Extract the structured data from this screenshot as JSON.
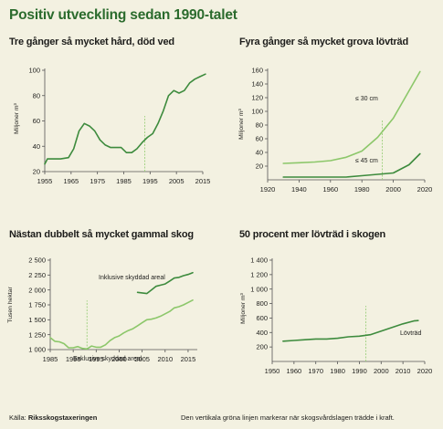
{
  "page_title": "Positiv utveckling sedan 1990-talet",
  "colors": {
    "title": "#2b6b2d",
    "dark_green": "#3d8b3d",
    "light_green": "#8cc76a",
    "vline": "#9cd07c",
    "axis": "#555555",
    "background": "#f3f1e1"
  },
  "footer": {
    "source_label": "Källa:",
    "source_name": "Riksskogstaxeringen",
    "note": "Den vertikala gröna linjen markerar när skogsvårdslagen trädde i kraft."
  },
  "chart_data": [
    {
      "type": "line",
      "title": "Tre gånger så mycket hård, död ved",
      "ylabel": "Miljoner m³",
      "xlabel": "",
      "xlim": [
        1955,
        2015
      ],
      "ylim": [
        20,
        100
      ],
      "xticks": [
        1955,
        1965,
        1975,
        1985,
        1995,
        2005,
        2015
      ],
      "yticks": [
        20,
        40,
        60,
        80,
        100
      ],
      "ytick_labels": [
        "20",
        "40",
        "60",
        "80",
        "100"
      ],
      "vline_x": 1993,
      "series": [
        {
          "name": "",
          "color": "#3d8b3d",
          "x": [
            1955,
            1956,
            1958,
            1961,
            1964,
            1966,
            1968,
            1970,
            1972,
            1974,
            1976,
            1978,
            1980,
            1982,
            1984,
            1986,
            1988,
            1990,
            1992,
            1994,
            1996,
            1998,
            2000,
            2002,
            2004,
            2006,
            2008,
            2010,
            2012,
            2014,
            2016
          ],
          "y": [
            26,
            30,
            30,
            30,
            31,
            38,
            52,
            58,
            56,
            52,
            45,
            41,
            39,
            39,
            39,
            35,
            35,
            38,
            43,
            47,
            50,
            58,
            68,
            80,
            84,
            82,
            84,
            90,
            93,
            95,
            97
          ]
        }
      ]
    },
    {
      "type": "line",
      "title": "Fyra gånger så mycket grova lövträd",
      "ylabel": "Miljoner m³",
      "xlabel": "",
      "xlim": [
        1920,
        2020
      ],
      "ylim": [
        0,
        160
      ],
      "xticks": [
        1920,
        1940,
        1960,
        1980,
        2000,
        2020
      ],
      "yticks": [
        20,
        40,
        60,
        80,
        100,
        120,
        140,
        160
      ],
      "ytick_labels": [
        "20",
        "40",
        "60",
        "80",
        "100",
        "120",
        "140",
        "160"
      ],
      "vline_x": 1993,
      "series": [
        {
          "name": "≤ 30 cm",
          "color": "#8cc76a",
          "x": [
            1930,
            1940,
            1950,
            1960,
            1970,
            1980,
            1990,
            2000,
            2010,
            2017
          ],
          "y": [
            24,
            25,
            26,
            28,
            33,
            42,
            62,
            90,
            130,
            158
          ]
        },
        {
          "name": "≤ 45 cm",
          "color": "#3d8b3d",
          "x": [
            1930,
            1940,
            1950,
            1960,
            1970,
            1980,
            1990,
            2000,
            2010,
            2017
          ],
          "y": [
            4,
            4,
            4,
            4,
            4,
            6,
            8,
            10,
            22,
            38
          ]
        }
      ]
    },
    {
      "type": "line",
      "title": "Nästan dubbelt så mycket gammal skog",
      "ylabel": "Tusen hektar",
      "xlabel": "",
      "xlim": [
        1985,
        2017
      ],
      "ylim": [
        1000,
        2500
      ],
      "xticks": [
        1985,
        1990,
        1995,
        2000,
        2005,
        2010,
        2015
      ],
      "yticks": [
        1000,
        1250,
        1500,
        1750,
        2000,
        2250,
        2500
      ],
      "ytick_labels": [
        "1 000",
        "1 250",
        "1 500",
        "1 750",
        "2 000",
        "2 250",
        "2 500"
      ],
      "vline_x": 1993,
      "series": [
        {
          "name": "Exklusive skyddad areal",
          "color": "#8cc76a",
          "x": [
            1985,
            1986,
            1987,
            1988,
            1989,
            1990,
            1991,
            1992,
            1993,
            1994,
            1995,
            1996,
            1997,
            1998,
            1999,
            2000,
            2001,
            2002,
            2003,
            2004,
            2005,
            2006,
            2007,
            2008,
            2009,
            2010,
            2011,
            2012,
            2013,
            2014,
            2015,
            2016
          ],
          "y": [
            1200,
            1140,
            1130,
            1100,
            1030,
            1030,
            1050,
            1020,
            1010,
            1060,
            1040,
            1040,
            1080,
            1150,
            1200,
            1230,
            1280,
            1320,
            1350,
            1400,
            1450,
            1500,
            1510,
            1530,
            1560,
            1600,
            1640,
            1700,
            1720,
            1750,
            1790,
            1830
          ]
        },
        {
          "name": "Inklusive skyddad areal",
          "color": "#3d8b3d",
          "x": [
            2004,
            2005,
            2006,
            2007,
            2008,
            2009,
            2010,
            2011,
            2012,
            2013,
            2014,
            2015,
            2016
          ],
          "y": [
            1960,
            1950,
            1940,
            2000,
            2060,
            2080,
            2100,
            2150,
            2200,
            2210,
            2240,
            2260,
            2290
          ]
        }
      ],
      "annotations": [
        "Inklusive skyddad areal",
        "Exklusive skyddad areal"
      ]
    },
    {
      "type": "line",
      "title": "50 procent mer lövträd i skogen",
      "ylabel": "Miljoner m³",
      "xlabel": "",
      "xlim": [
        1950,
        2020
      ],
      "ylim": [
        0,
        1400
      ],
      "xticks": [
        1950,
        1960,
        1970,
        1980,
        1990,
        2000,
        2010,
        2020
      ],
      "yticks": [
        200,
        400,
        600,
        800,
        1000,
        1200,
        1400
      ],
      "ytick_labels": [
        "200",
        "400",
        "600",
        "800",
        "1 000",
        "1 200",
        "1 400"
      ],
      "vline_x": 1993,
      "series": [
        {
          "name": "Lövträd",
          "color": "#3d8b3d",
          "x": [
            1955,
            1960,
            1965,
            1970,
            1975,
            1980,
            1985,
            1990,
            1995,
            2000,
            2005,
            2010,
            2015,
            2017
          ],
          "y": [
            280,
            290,
            300,
            310,
            310,
            320,
            340,
            350,
            370,
            420,
            470,
            520,
            560,
            565
          ]
        }
      ]
    }
  ]
}
